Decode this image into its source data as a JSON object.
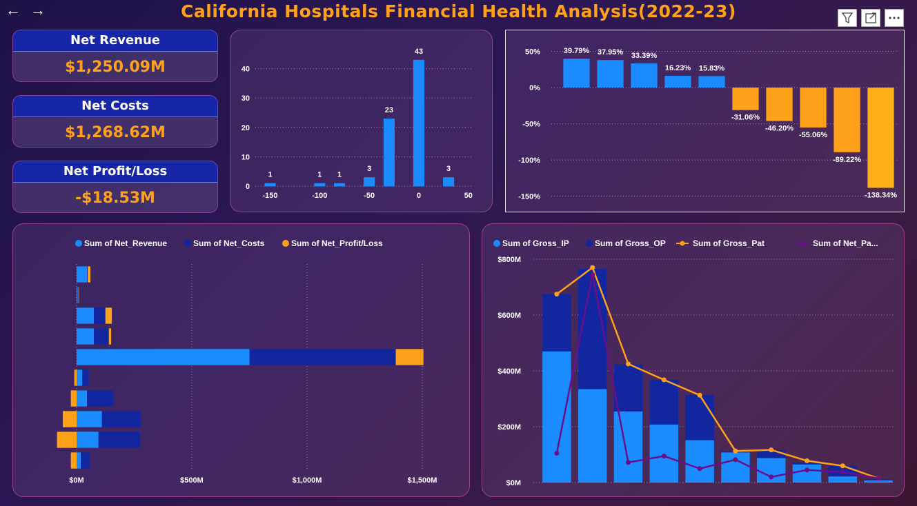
{
  "header": {
    "title": "California Hospitals Financial Health Analysis(2022-23)",
    "back_icon": "←",
    "forward_icon": "→"
  },
  "toolbar": {
    "filter_icon": "filter-icon",
    "focus_icon": "expand-icon",
    "more_icon": "more-options-icon"
  },
  "kpis": [
    {
      "label": "Net Revenue",
      "value": "$1,250.09M"
    },
    {
      "label": "Net Costs",
      "value": "$1,268.62M"
    },
    {
      "label": "Net Profit/Loss",
      "value": "-$18.53M"
    }
  ],
  "colors": {
    "accent_orange": "#ffa21a",
    "blue": "#1a8cff",
    "navy": "#1226a0",
    "purple": "#6a0f8c",
    "kpi_header": "#1726a6"
  },
  "chart_data": [
    {
      "id": "histogram",
      "type": "bar",
      "x": [
        -150,
        -100,
        -80,
        -50,
        -30,
        0,
        30
      ],
      "values": [
        1,
        1,
        1,
        3,
        23,
        43,
        3
      ],
      "labels": [
        "1",
        "1",
        "1",
        "3",
        "23",
        "43",
        "3"
      ],
      "x_ticks": [
        "-150",
        "-100",
        "-50",
        "0",
        "50"
      ],
      "x_tick_values": [
        -150,
        -100,
        -50,
        0,
        50
      ],
      "y_ticks": [
        "0",
        "10",
        "20",
        "30",
        "40"
      ],
      "ylim": [
        0,
        46
      ]
    },
    {
      "id": "margin",
      "type": "bar",
      "values": [
        39.79,
        37.95,
        33.39,
        16.23,
        15.83,
        -31.06,
        -46.2,
        -55.06,
        -89.22,
        -138.34
      ],
      "labels": [
        "39.79%",
        "37.95%",
        "33.39%",
        "16.23%",
        "15.83%",
        "-31.06%",
        "-46.20%",
        "-55.06%",
        "-89.22%",
        "-138.34%"
      ],
      "y_ticks": [
        "50%",
        "0%",
        "-50%",
        "-100%",
        "-150%"
      ],
      "y_tick_values": [
        50,
        0,
        -50,
        -100,
        -150
      ],
      "ylim": [
        -155,
        60
      ]
    },
    {
      "id": "stacked_bar",
      "type": "bar",
      "orientation": "horizontal",
      "series": [
        {
          "name": "Sum of Net_Revenue",
          "color": "#1a8cff",
          "values": [
            45,
            5,
            75,
            75,
            750,
            25,
            45,
            110,
            95,
            18
          ]
        },
        {
          "name": "Sum of Net_Costs",
          "color": "#1226a0",
          "values": [
            3,
            3,
            50,
            65,
            635,
            28,
            115,
            170,
            180,
            40
          ]
        },
        {
          "name": "Sum of Net_Profit/Loss",
          "color": "#ffa21a",
          "values": [
            12,
            2,
            28,
            10,
            120,
            -10,
            -25,
            -60,
            -85,
            -25
          ]
        }
      ],
      "x_ticks": [
        "$0M",
        "$500M",
        "$1,000M",
        "$1,500M"
      ],
      "x_tick_values": [
        0,
        500,
        1000,
        1500
      ],
      "xlim": [
        -100,
        1550
      ]
    },
    {
      "id": "combo",
      "type": "bar",
      "series": [
        {
          "name": "Sum of Gross_IP",
          "kind": "bar",
          "color": "#1a8cff",
          "values": [
            470,
            335,
            255,
            208,
            152,
            108,
            88,
            65,
            22,
            8
          ]
        },
        {
          "name": "Sum of Gross_OP",
          "kind": "bar",
          "color": "#1226a0",
          "values": [
            205,
            430,
            168,
            160,
            162,
            4,
            28,
            7,
            38,
            4
          ]
        },
        {
          "name": "Sum of Gross_Pat",
          "kind": "line",
          "color": "#ffa21a",
          "values": [
            675,
            770,
            425,
            368,
            313,
            113,
            117,
            78,
            60,
            15
          ]
        },
        {
          "name": "Sum of Net_Pa...",
          "kind": "line",
          "color": "#6a0f8c",
          "values": [
            105,
            745,
            72,
            95,
            50,
            82,
            20,
            45,
            38,
            15
          ]
        }
      ],
      "y_ticks": [
        "$0M",
        "$200M",
        "$400M",
        "$600M",
        "$800M"
      ],
      "y_tick_values": [
        0,
        200,
        400,
        600,
        800
      ],
      "ylim": [
        0,
        800
      ]
    }
  ]
}
